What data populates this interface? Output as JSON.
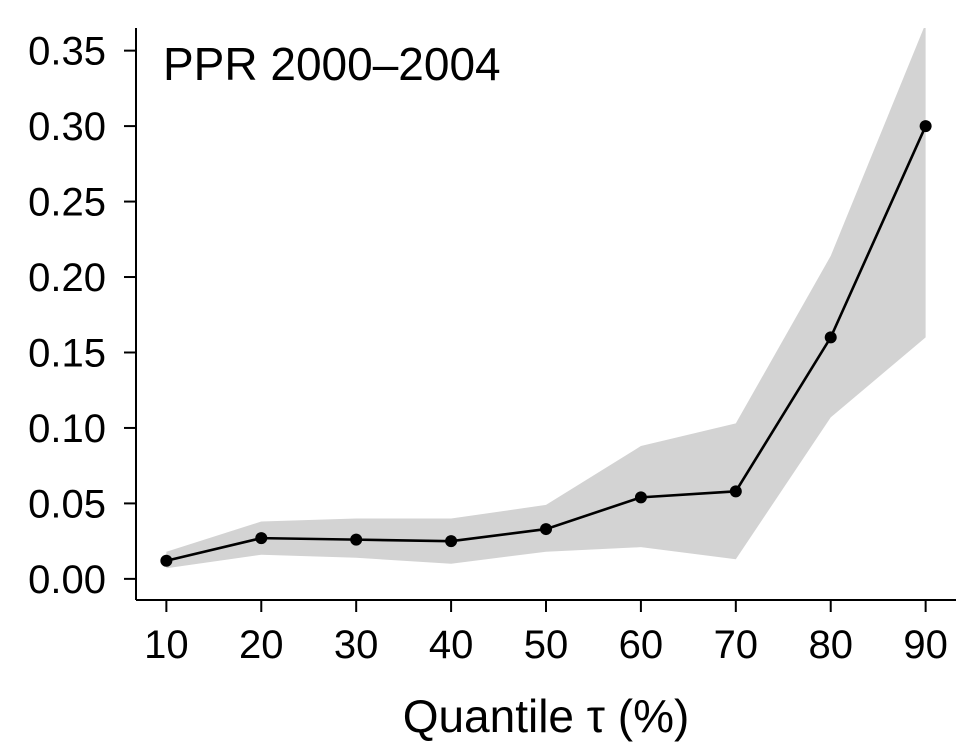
{
  "chart_data": {
    "type": "line",
    "title": "PPR 2000–2004",
    "xlabel": "Quantile τ (%)",
    "ylabel": "",
    "x": [
      10,
      20,
      30,
      40,
      50,
      60,
      70,
      80,
      90
    ],
    "x_tick_labels": [
      "10",
      "20",
      "30",
      "40",
      "50",
      "60",
      "70",
      "80",
      "90"
    ],
    "y_ticks": [
      0.0,
      0.05,
      0.1,
      0.15,
      0.2,
      0.25,
      0.3,
      0.35
    ],
    "y_tick_labels": [
      "0.00",
      "0.05",
      "0.10",
      "0.15",
      "0.20",
      "0.25",
      "0.30",
      "0.35"
    ],
    "xlim": [
      6.8,
      93.2
    ],
    "ylim": [
      -0.014,
      0.365
    ],
    "series": [
      {
        "values": [
          0.012,
          0.027,
          0.026,
          0.025,
          0.033,
          0.054,
          0.058,
          0.16,
          0.3
        ],
        "line_color": "#000000",
        "marker_color": "#000000"
      }
    ],
    "confidence_band": {
      "lower": [
        0.007,
        0.016,
        0.014,
        0.01,
        0.018,
        0.021,
        0.013,
        0.107,
        0.16
      ],
      "upper": [
        0.018,
        0.038,
        0.04,
        0.04,
        0.049,
        0.088,
        0.103,
        0.214,
        0.368
      ],
      "color": "#d3d3d3"
    },
    "grid": false,
    "legend": "none"
  }
}
